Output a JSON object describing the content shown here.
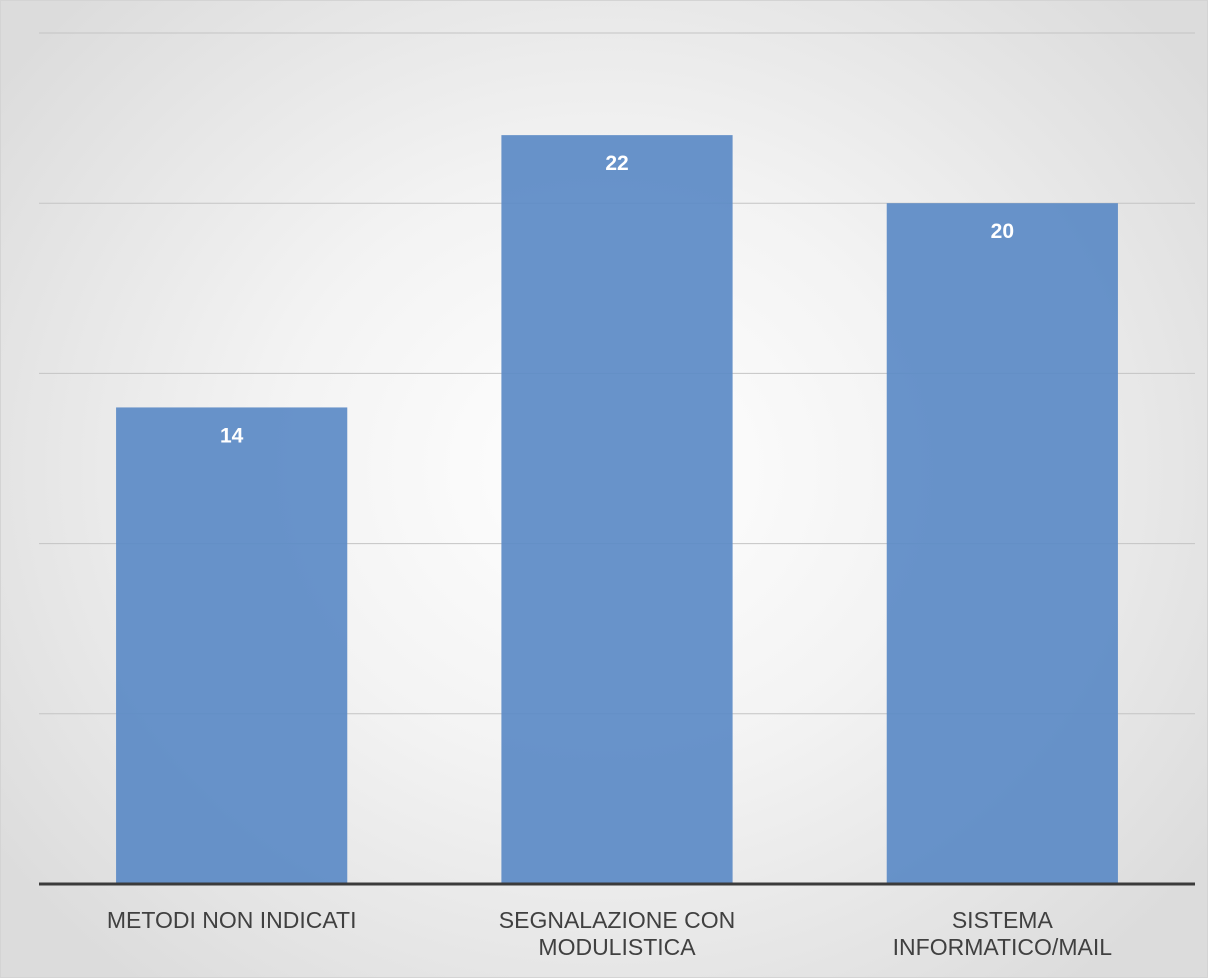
{
  "chart_data": {
    "type": "bar",
    "categories": [
      "METODI NON INDICATI",
      "SEGNALAZIONE CON MODULISTICA",
      "SISTEMA INFORMATICO/MAIL"
    ],
    "category_lines": [
      [
        "METODI NON INDICATI"
      ],
      [
        "SEGNALAZIONE CON",
        "MODULISTICA"
      ],
      [
        "SISTEMA",
        "INFORMATICO/MAIL"
      ]
    ],
    "values": [
      14,
      22,
      20
    ],
    "ylim": [
      0,
      25
    ],
    "grid": true,
    "legend": "none",
    "colors": {
      "bar": "#5b8ac6",
      "label": "#ffffff",
      "axis": "#3b3b3b",
      "grid": "#c4c4c4"
    }
  }
}
